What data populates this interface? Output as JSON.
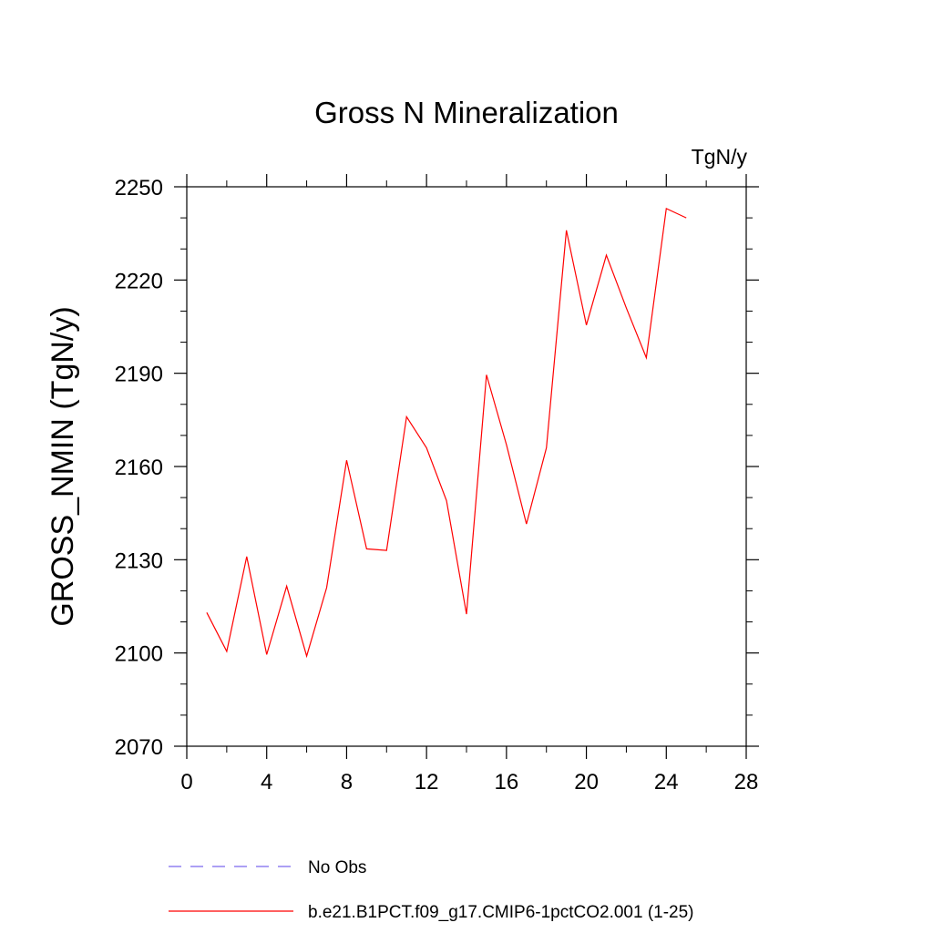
{
  "chart_data": {
    "type": "line",
    "title": "Gross N Mineralization",
    "units_label": "TgN/y",
    "xlabel": "",
    "ylabel": "GROSS_NMIN  (TgN/y)",
    "xlim": [
      0,
      28
    ],
    "ylim": [
      2070,
      2250
    ],
    "x_ticks": [
      0,
      4,
      8,
      12,
      16,
      20,
      24,
      28
    ],
    "y_ticks": [
      2070,
      2100,
      2130,
      2160,
      2190,
      2220,
      2250
    ],
    "x_tick_labels": [
      "0",
      "4",
      "8",
      "12",
      "16",
      "20",
      "24",
      "28"
    ],
    "y_tick_labels": [
      "2070",
      "2100",
      "2130",
      "2160",
      "2190",
      "2220",
      "2250"
    ],
    "grid": false,
    "legend_position": "bottom",
    "series": [
      {
        "name": "No Obs",
        "color": "#7b68ee",
        "style": "dashed",
        "x": [],
        "y": []
      },
      {
        "name": "b.e21.B1PCT.f09_g17.CMIP6-1pctCO2.001 (1-25)",
        "color": "#ff0000",
        "style": "solid",
        "x": [
          1,
          2,
          3,
          4,
          5,
          6,
          7,
          8,
          9,
          10,
          11,
          12,
          13,
          14,
          15,
          16,
          17,
          18,
          19,
          20,
          21,
          22,
          23,
          24,
          25
        ],
        "y": [
          2113,
          2100.5,
          2131,
          2099.5,
          2121.5,
          2099,
          2121,
          2162,
          2133.5,
          2133,
          2176,
          2166,
          2149,
          2112.5,
          2189.5,
          2167,
          2141.5,
          2166,
          2236,
          2205.5,
          2228,
          2211,
          2195,
          2243,
          2240
        ]
      }
    ]
  }
}
